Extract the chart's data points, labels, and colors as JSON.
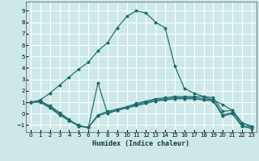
{
  "xlabel": "Humidex (Indice chaleur)",
  "bg_color": "#cce8e8",
  "grid_color": "#ffffff",
  "line_color": "#1a6b6b",
  "xlim": [
    -0.5,
    23.5
  ],
  "ylim": [
    -1.6,
    9.8
  ],
  "xticks": [
    0,
    1,
    2,
    3,
    4,
    5,
    6,
    7,
    8,
    9,
    10,
    11,
    12,
    13,
    14,
    15,
    16,
    17,
    18,
    19,
    20,
    21,
    22,
    23
  ],
  "yticks": [
    -1,
    0,
    1,
    2,
    3,
    4,
    5,
    6,
    7,
    8,
    9
  ],
  "main_x": [
    0,
    1,
    2,
    3,
    4,
    5,
    6,
    7,
    8,
    9,
    10,
    11,
    12,
    13,
    14,
    15,
    16,
    17,
    18,
    19,
    20,
    21,
    22,
    23
  ],
  "main_y": [
    1.0,
    1.2,
    1.8,
    2.5,
    3.2,
    3.9,
    4.5,
    5.5,
    6.2,
    7.5,
    8.5,
    9.0,
    8.8,
    8.0,
    7.5,
    4.2,
    2.2,
    1.8,
    1.5,
    1.2,
    0.8,
    0.3,
    -0.8,
    -1.1
  ],
  "line1_x": [
    0,
    1,
    2,
    3,
    4,
    5,
    6,
    7,
    8,
    9,
    10,
    11,
    12,
    13,
    14,
    15,
    16,
    17,
    18,
    19,
    20,
    21,
    22,
    23
  ],
  "line1_y": [
    1.0,
    1.1,
    0.7,
    0.1,
    -0.5,
    -1.1,
    -1.2,
    2.7,
    0.0,
    0.3,
    0.6,
    0.9,
    1.1,
    1.3,
    1.4,
    1.5,
    1.5,
    1.5,
    1.5,
    1.4,
    0.2,
    0.3,
    -0.8,
    -1.1
  ],
  "line2_x": [
    0,
    1,
    2,
    3,
    4,
    5,
    6,
    7,
    8,
    9,
    10,
    11,
    12,
    13,
    14,
    15,
    16,
    17,
    18,
    19,
    20,
    21,
    22,
    23
  ],
  "line2_y": [
    1.0,
    1.1,
    0.6,
    0.0,
    -0.6,
    -1.0,
    -1.2,
    -0.1,
    0.2,
    0.4,
    0.6,
    0.8,
    1.0,
    1.2,
    1.3,
    1.4,
    1.4,
    1.4,
    1.3,
    1.2,
    -0.1,
    0.1,
    -1.0,
    -1.2
  ],
  "line3_x": [
    0,
    1,
    2,
    3,
    4,
    5,
    6,
    7,
    8,
    9,
    10,
    11,
    12,
    13,
    14,
    15,
    16,
    17,
    18,
    19,
    20,
    21,
    22,
    23
  ],
  "line3_y": [
    1.0,
    1.0,
    0.5,
    -0.1,
    -0.6,
    -1.1,
    -1.2,
    -0.2,
    0.1,
    0.3,
    0.5,
    0.7,
    0.9,
    1.1,
    1.2,
    1.3,
    1.3,
    1.3,
    1.2,
    1.1,
    -0.2,
    -0.0,
    -1.1,
    -1.3
  ]
}
